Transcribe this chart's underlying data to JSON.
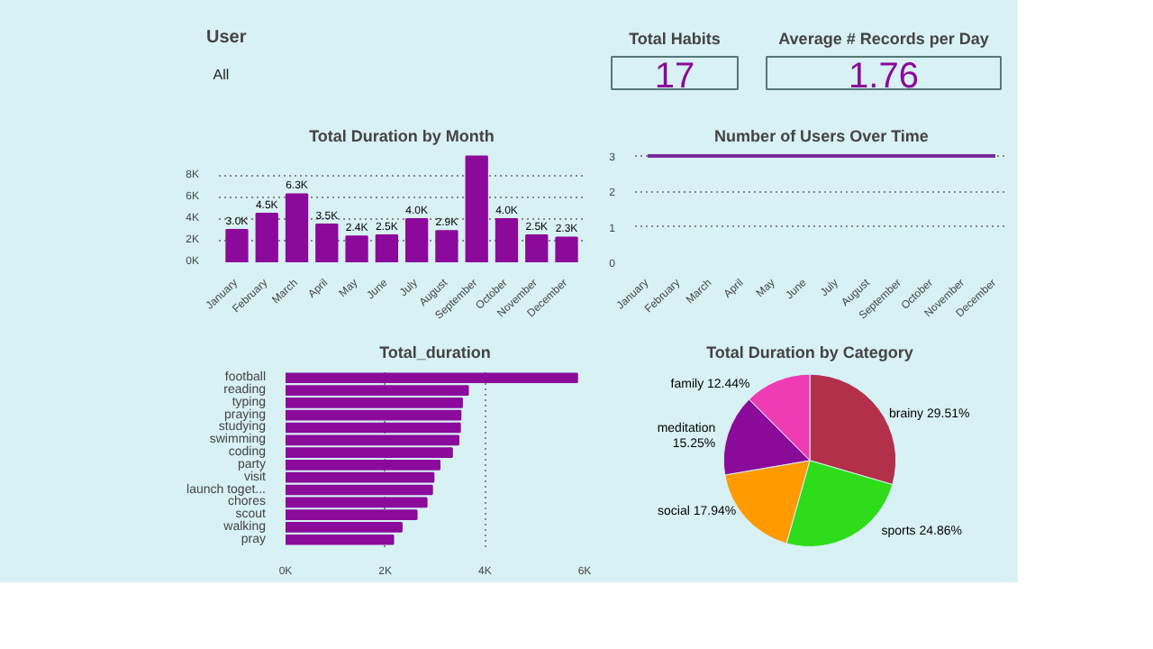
{
  "chart_data": [
    {
      "type": "other",
      "title": "User",
      "annotations": [
        "All"
      ]
    },
    {
      "type": "other",
      "title": "Total Habits",
      "annotations": [
        "17"
      ]
    },
    {
      "type": "other",
      "title": "Average # Records per Day",
      "annotations": [
        "1.76"
      ]
    },
    {
      "type": "bar",
      "title": "Total Duration by Month",
      "categories": [
        "January",
        "February",
        "March",
        "April",
        "May",
        "June",
        "July",
        "August",
        "September",
        "October",
        "November",
        "December"
      ],
      "values": [
        3.0,
        4.5,
        6.3,
        3.5,
        2.4,
        2.5,
        4.0,
        2.9,
        9.8,
        4.0,
        2.5,
        2.3
      ],
      "color": "#8b0a9b",
      "value_labels": [
        "3.0K",
        "4.5K",
        "6.3K",
        "3.5K",
        "2.4K",
        "2.5K",
        "4.0K",
        "2.9K",
        null,
        "4.0K",
        "2.5K",
        "2.3K"
      ],
      "ylim": [
        0,
        10
      ],
      "yticks": [
        {
          "value": 0,
          "label": "0K"
        },
        {
          "value": 2,
          "label": "2K"
        },
        {
          "value": 4,
          "label": "4K"
        },
        {
          "value": 6,
          "label": "6K"
        },
        {
          "value": 8,
          "label": "8K"
        }
      ],
      "grid": "y"
    },
    {
      "type": "line",
      "title": "Number of Users Over Time",
      "categories": [
        "January",
        "February",
        "March",
        "April",
        "May",
        "June",
        "July",
        "August",
        "September",
        "October",
        "November",
        "December"
      ],
      "values": [
        3,
        3,
        3,
        3,
        3,
        3,
        3,
        3,
        3,
        3,
        3,
        3
      ],
      "color": "#7a2a9a",
      "ylim": [
        0,
        3.05
      ],
      "yticks": [
        0,
        1,
        2,
        3
      ],
      "grid": "y"
    },
    {
      "type": "bar",
      "orientation": "horizontal",
      "title": "Total_duration",
      "categories": [
        "football",
        "reading",
        "typing",
        "praying",
        "studying",
        "swimming",
        "coding",
        "party",
        "visit",
        "launch toget...",
        "chores",
        "scout",
        "walking",
        "pray"
      ],
      "values": [
        5.85,
        3.66,
        3.54,
        3.51,
        3.5,
        3.47,
        3.34,
        3.09,
        2.97,
        2.94,
        2.83,
        2.63,
        2.33,
        2.16
      ],
      "color": "#8b0a9b",
      "xlim": [
        0,
        6
      ],
      "xticks": [
        {
          "value": 0,
          "label": "0K"
        },
        {
          "value": 2,
          "label": "2K"
        },
        {
          "value": 4,
          "label": "4K"
        },
        {
          "value": 6,
          "label": "6K"
        }
      ],
      "grid": "x"
    },
    {
      "type": "pie",
      "title": "Total Duration by Category",
      "categories": [
        "brainy",
        "sports",
        "social",
        "meditation",
        "family"
      ],
      "values": [
        29.51,
        24.86,
        17.94,
        15.25,
        12.44
      ],
      "colors": [
        "#b3304b",
        "#2edc1a",
        "#ff9a00",
        "#8a0a9a",
        "#f03cb4"
      ],
      "value_labels": [
        "29.51%",
        "24.86%",
        "17.94%",
        "15.25%",
        "12.44%"
      ]
    }
  ]
}
